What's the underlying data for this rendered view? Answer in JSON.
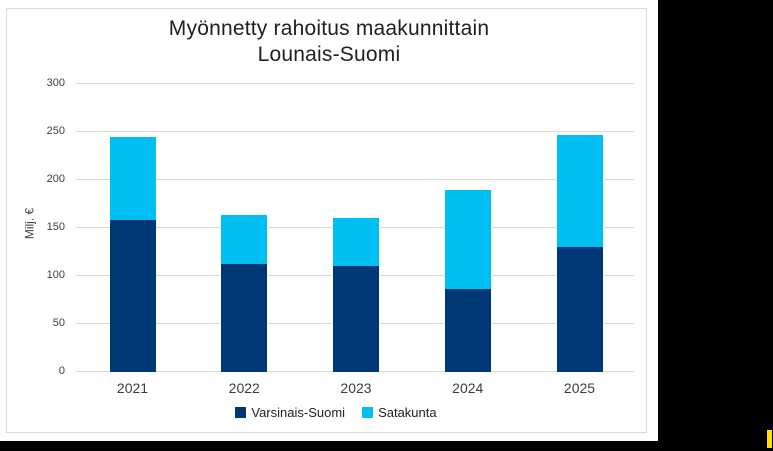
{
  "window": {
    "background_color": "#000000",
    "panel_color": "#ffffff",
    "caret_color": "#ffe000"
  },
  "chart": {
    "title_line1": "Myönnetty rahoitus maakunnittain",
    "title_line2": "Lounais-Suomi",
    "y_axis_title": "Milj. €"
  },
  "chart_data": {
    "type": "bar",
    "stacked": true,
    "title": "Myönnetty rahoitus maakunnittain Lounais-Suomi",
    "xlabel": "",
    "ylabel": "Milj. €",
    "categories": [
      "2021",
      "2022",
      "2023",
      "2024",
      "2025"
    ],
    "series": [
      {
        "name": "Varsinais-Suomi",
        "color": "#003876",
        "values": [
          158,
          112,
          110,
          86,
          130
        ]
      },
      {
        "name": "Satakunta",
        "color": "#00bff3",
        "values": [
          86,
          51,
          50,
          103,
          117
        ]
      }
    ],
    "totals": [
      244,
      163,
      160,
      189,
      247
    ],
    "yticks": [
      0,
      50,
      100,
      150,
      200,
      250,
      300
    ],
    "ylim": [
      0,
      300
    ],
    "grid": true,
    "legend_position": "bottom"
  }
}
